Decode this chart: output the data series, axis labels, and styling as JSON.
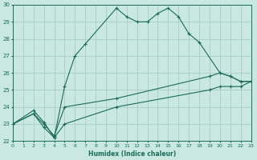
{
  "xlabel": "Humidex (Indice chaleur)",
  "bg_color": "#c8e8e0",
  "grid_color": "#a8ccc8",
  "line_color": "#1a6b5a",
  "xlim": [
    0,
    23
  ],
  "ylim": [
    22,
    30
  ],
  "xticks": [
    0,
    1,
    2,
    3,
    4,
    5,
    6,
    7,
    8,
    9,
    10,
    11,
    12,
    13,
    14,
    15,
    16,
    17,
    18,
    19,
    20,
    21,
    22,
    23
  ],
  "yticks": [
    22,
    23,
    24,
    25,
    26,
    27,
    28,
    29,
    30
  ],
  "line1_x": [
    0,
    2,
    3,
    4,
    5,
    6,
    7,
    10,
    11,
    12,
    13,
    14,
    15,
    16,
    17,
    18,
    20,
    21,
    22,
    23
  ],
  "line1_y": [
    23,
    23.8,
    23.1,
    22.2,
    25.2,
    27.0,
    27.7,
    29.8,
    29.3,
    29.0,
    29.0,
    29.5,
    29.8,
    29.3,
    28.3,
    27.8,
    26.0,
    25.8,
    25.5,
    25.5
  ],
  "line2_x": [
    0,
    2,
    3,
    4,
    5,
    10,
    19,
    20,
    21,
    22,
    23
  ],
  "line2_y": [
    23,
    23.6,
    23.0,
    22.3,
    24.0,
    24.5,
    25.8,
    26.0,
    25.8,
    25.5,
    25.5
  ],
  "line3_x": [
    0,
    2,
    3,
    4,
    5,
    10,
    19,
    20,
    21,
    22,
    23
  ],
  "line3_y": [
    23,
    23.6,
    22.8,
    22.2,
    23.0,
    24.0,
    25.0,
    25.2,
    25.2,
    25.2,
    25.5
  ]
}
